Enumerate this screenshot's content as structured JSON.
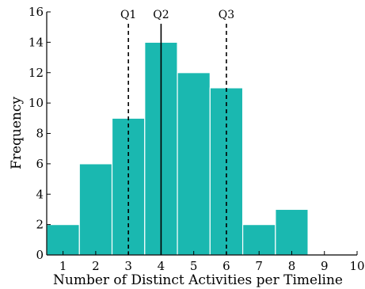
{
  "chart_data": {
    "type": "bar",
    "subtype": "histogram",
    "bar_color": "#1ab8b0",
    "bar_edge_color": "#ffffff",
    "bins": [
      {
        "start": 0.5,
        "end": 1.5,
        "value": 2
      },
      {
        "start": 1.5,
        "end": 2.5,
        "value": 6
      },
      {
        "start": 2.5,
        "end": 3.5,
        "value": 9
      },
      {
        "start": 3.5,
        "end": 4.5,
        "value": 14
      },
      {
        "start": 4.5,
        "end": 5.5,
        "value": 12
      },
      {
        "start": 5.5,
        "end": 6.5,
        "value": 11
      },
      {
        "start": 6.5,
        "end": 7.5,
        "value": 2
      },
      {
        "start": 7.5,
        "end": 8.5,
        "value": 3
      },
      {
        "start": 8.5,
        "end": 9.5,
        "value": 0
      }
    ],
    "xlabel": "Number of Distinct Activities per Timeline",
    "ylabel": "Frequency",
    "xlim": [
      0.5,
      10
    ],
    "ylim": [
      0,
      16
    ],
    "xticks": [
      "1",
      "2",
      "3",
      "4",
      "5",
      "6",
      "7",
      "8",
      "9",
      "10"
    ],
    "yticks": [
      "0",
      "2",
      "4",
      "6",
      "8",
      "10",
      "12",
      "14",
      "16"
    ],
    "grid": false,
    "reference_lines": [
      {
        "label": "Q1",
        "x": 3,
        "style": "dashed"
      },
      {
        "label": "Q2",
        "x": 4,
        "style": "solid"
      },
      {
        "label": "Q3",
        "x": 6,
        "style": "dashed"
      }
    ]
  }
}
